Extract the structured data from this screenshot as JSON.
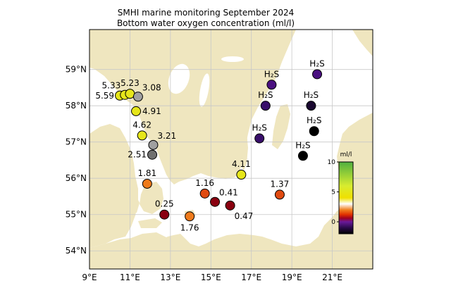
{
  "title": {
    "line1": "SMHI marine monitoring September 2024",
    "line2": "Bottom water oxygen concentration (ml/l)"
  },
  "colors": {
    "land": "#efe6bf",
    "sea": "#ffffff",
    "grid": "#c8c8c8",
    "frame": "#000000"
  },
  "axes": {
    "lon_min": 9,
    "lon_max": 23,
    "lat_min": 53.5,
    "lat_max": 60.1,
    "lon_ticks": [
      {
        "value": 9,
        "label": "9°E"
      },
      {
        "value": 11,
        "label": "11°E"
      },
      {
        "value": 13,
        "label": "13°E"
      },
      {
        "value": 15,
        "label": "15°E"
      },
      {
        "value": 17,
        "label": "17°E"
      },
      {
        "value": 19,
        "label": "19°E"
      },
      {
        "value": 21,
        "label": "21°E"
      }
    ],
    "lat_ticks": [
      {
        "value": 54,
        "label": "54°N"
      },
      {
        "value": 55,
        "label": "55°N"
      },
      {
        "value": 56,
        "label": "56°N"
      },
      {
        "value": 57,
        "label": "57°N"
      },
      {
        "value": 58,
        "label": "58°N"
      },
      {
        "value": 59,
        "label": "59°N"
      }
    ]
  },
  "colorbar": {
    "label": "ml/l",
    "min": -2,
    "max": 10,
    "ticks": [
      {
        "value": 10,
        "label": "10"
      },
      {
        "value": 5,
        "label": "5"
      },
      {
        "value": 0,
        "label": "0"
      }
    ],
    "stops": [
      {
        "value": -2,
        "color": "#000000"
      },
      {
        "value": -1,
        "color": "#2a0a4a"
      },
      {
        "value": 0,
        "color": "#6a1a9a"
      },
      {
        "value": 0.6,
        "color": "#a00020"
      },
      {
        "value": 1.2,
        "color": "#e03000"
      },
      {
        "value": 2,
        "color": "#f08020"
      },
      {
        "value": 3,
        "color": "#ffffff"
      },
      {
        "value": 4,
        "color": "#f0e000"
      },
      {
        "value": 6,
        "color": "#d8ec30"
      },
      {
        "value": 10,
        "color": "#50b040"
      }
    ]
  },
  "stations": [
    {
      "lon": 10.5,
      "lat": 58.28,
      "label": "5.59",
      "color": "#e6e61a",
      "labelPos": "left"
    },
    {
      "lon": 10.75,
      "lat": 58.3,
      "label": "5.33",
      "color": "#e6e61a",
      "labelPos": "above-left"
    },
    {
      "lon": 11.0,
      "lat": 58.33,
      "label": "5.23",
      "color": "#e6e61a",
      "labelPos": "above"
    },
    {
      "lon": 11.4,
      "lat": 58.25,
      "label": "3.08",
      "color": "#a0a0a0",
      "labelPos": "above-right"
    },
    {
      "lon": 11.3,
      "lat": 57.85,
      "label": "4.91",
      "color": "#e6e61a",
      "labelPos": "right"
    },
    {
      "lon": 11.6,
      "lat": 57.18,
      "label": "4.62",
      "color": "#e6e61a",
      "labelPos": "above"
    },
    {
      "lon": 12.15,
      "lat": 56.92,
      "label": "3.21",
      "color": "#a0a0a0",
      "labelPos": "above-right"
    },
    {
      "lon": 12.1,
      "lat": 56.65,
      "label": "2.51",
      "color": "#707070",
      "labelPos": "left"
    },
    {
      "lon": 11.85,
      "lat": 55.85,
      "label": "1.81",
      "color": "#ee7a1a",
      "labelPos": "above"
    },
    {
      "lon": 12.7,
      "lat": 55.0,
      "label": "0.25",
      "color": "#8a0010",
      "labelPos": "above"
    },
    {
      "lon": 13.95,
      "lat": 54.95,
      "label": "1.76",
      "color": "#ee7a1a",
      "labelPos": "below"
    },
    {
      "lon": 14.7,
      "lat": 55.58,
      "label": "1.16",
      "color": "#e04a10",
      "labelPos": "above"
    },
    {
      "lon": 15.2,
      "lat": 55.35,
      "label": "0.41",
      "color": "#8a0010",
      "labelPos": "above-right"
    },
    {
      "lon": 15.95,
      "lat": 55.25,
      "label": "0.47",
      "color": "#8a0010",
      "labelPos": "below-right"
    },
    {
      "lon": 16.5,
      "lat": 56.1,
      "label": "4.11",
      "color": "#e6e61a",
      "labelPos": "above"
    },
    {
      "lon": 18.4,
      "lat": 55.55,
      "label": "1.37",
      "color": "#e04a10",
      "labelPos": "above"
    },
    {
      "lon": 18.0,
      "lat": 58.58,
      "label": "H₂S",
      "color": "#4a1080",
      "labelPos": "above"
    },
    {
      "lon": 20.25,
      "lat": 58.87,
      "label": "H₂S",
      "color": "#4a1080",
      "labelPos": "above"
    },
    {
      "lon": 17.7,
      "lat": 58.0,
      "label": "H₂S",
      "color": "#380e6a",
      "labelPos": "above"
    },
    {
      "lon": 19.95,
      "lat": 58.0,
      "label": "H₂S",
      "color": "#1a0830",
      "labelPos": "above"
    },
    {
      "lon": 17.4,
      "lat": 57.1,
      "label": "H₂S",
      "color": "#380e6a",
      "labelPos": "above"
    },
    {
      "lon": 20.1,
      "lat": 57.3,
      "label": "H₂S",
      "color": "#000000",
      "labelPos": "above"
    },
    {
      "lon": 19.55,
      "lat": 56.62,
      "label": "H₂S",
      "color": "#000000",
      "labelPos": "above"
    }
  ]
}
